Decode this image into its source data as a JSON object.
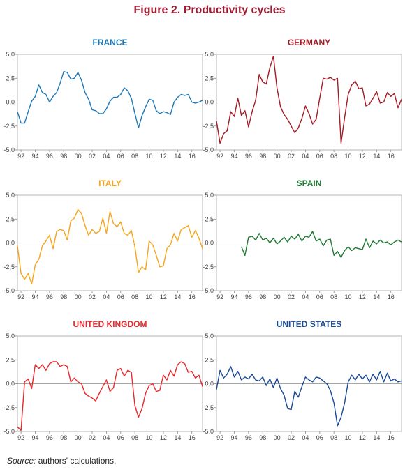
{
  "figure": {
    "title": "Figure 2. Productivity cycles",
    "source_label": "Source:",
    "source_text": " authors' calculations."
  },
  "chart_data": [
    {
      "type": "line",
      "title": "FRANCE",
      "color": "#1f77b4",
      "yticks": [
        "5,0",
        "2,5",
        "0,0",
        "-2,5",
        "-5,0"
      ],
      "ylim": [
        -5,
        5
      ],
      "xticks": [
        "92",
        "94",
        "96",
        "98",
        "00",
        "02",
        "04",
        "06",
        "08",
        "10",
        "12",
        "14",
        "16"
      ],
      "xlim": [
        1991.5,
        2017.5
      ],
      "grid": false,
      "x": [
        1991.5,
        1992,
        1992.5,
        1993,
        1993.5,
        1994,
        1994.5,
        1995,
        1995.5,
        1996,
        1996.5,
        1997,
        1997.5,
        1998,
        1998.5,
        1999,
        1999.5,
        2000,
        2000.5,
        2001,
        2001.5,
        2002,
        2002.5,
        2003,
        2003.5,
        2004,
        2004.5,
        2005,
        2005.5,
        2006,
        2006.5,
        2007,
        2007.5,
        2008,
        2008.5,
        2009,
        2009.5,
        2010,
        2010.5,
        2011,
        2011.5,
        2012,
        2012.5,
        2013,
        2013.5,
        2014,
        2014.5,
        2015,
        2015.5,
        2016,
        2016.5,
        2017,
        2017.5
      ],
      "y": [
        -1.0,
        -2.2,
        -2.2,
        -1.0,
        0.1,
        0.6,
        1.8,
        1.0,
        0.8,
        0.0,
        0.6,
        1.0,
        2.0,
        3.2,
        3.1,
        2.4,
        2.5,
        3.1,
        2.3,
        1.0,
        0.3,
        -0.8,
        -0.9,
        -1.2,
        -1.2,
        -0.7,
        0.1,
        0.5,
        0.5,
        0.8,
        1.5,
        1.2,
        0.4,
        -1.2,
        -2.7,
        -1.4,
        -0.5,
        0.3,
        0.2,
        -0.9,
        -1.2,
        -1.0,
        -1.1,
        -1.3,
        0.0,
        0.5,
        0.8,
        0.7,
        0.8,
        0.0,
        -0.1,
        0.0,
        0.2
      ]
    },
    {
      "type": "line",
      "title": "GERMANY",
      "color": "#a31b24",
      "yticks": [
        "5,0",
        "2,5",
        "0,0",
        "-2,5",
        "-5,0"
      ],
      "ylim": [
        -5,
        5
      ],
      "xticks": [
        "92",
        "94",
        "96",
        "98",
        "00",
        "02",
        "04",
        "06",
        "08",
        "10",
        "12",
        "14",
        "16"
      ],
      "xlim": [
        1991.5,
        2017.5
      ],
      "grid": false,
      "x": [
        1991.5,
        1992,
        1992.5,
        1993,
        1993.5,
        1994,
        1994.5,
        1995,
        1995.5,
        1996,
        1996.5,
        1997,
        1997.5,
        1998,
        1998.5,
        1999,
        1999.5,
        2000,
        2000.5,
        2001,
        2001.5,
        2002,
        2002.5,
        2003,
        2003.5,
        2004,
        2004.5,
        2005,
        2005.5,
        2006,
        2006.5,
        2007,
        2007.5,
        2008,
        2008.5,
        2009,
        2009.5,
        2010,
        2010.5,
        2011,
        2011.5,
        2012,
        2012.5,
        2013,
        2013.5,
        2014,
        2014.5,
        2015,
        2015.5,
        2016,
        2016.5,
        2017,
        2017.5
      ],
      "y": [
        -2.0,
        -4.3,
        -3.3,
        -3.0,
        -1.0,
        -1.5,
        0.4,
        -1.4,
        -0.9,
        -2.6,
        -1.0,
        0.2,
        2.9,
        2.1,
        1.9,
        3.6,
        4.8,
        1.5,
        -0.5,
        -1.3,
        -1.8,
        -2.5,
        -3.2,
        -2.7,
        -1.7,
        -0.4,
        -1.2,
        -2.3,
        -1.8,
        0.4,
        2.5,
        2.4,
        2.6,
        2.3,
        2.5,
        -4.3,
        -1.6,
        0.8,
        1.8,
        2.2,
        1.4,
        1.5,
        -0.4,
        -0.2,
        0.4,
        1.1,
        -0.1,
        0.0,
        1.0,
        0.6,
        0.9,
        -0.6,
        0.3
      ]
    },
    {
      "type": "line",
      "title": "ITALY",
      "color": "#f5a51c",
      "yticks": [
        "5,0",
        "2,5",
        "0,0",
        "-2,5",
        "-5,0"
      ],
      "ylim": [
        -5,
        5
      ],
      "xticks": [
        "92",
        "94",
        "96",
        "98",
        "00",
        "02",
        "04",
        "06",
        "08",
        "10",
        "12",
        "14",
        "16"
      ],
      "xlim": [
        1991.5,
        2017.5
      ],
      "grid": false,
      "x": [
        1991.5,
        1992,
        1992.5,
        1993,
        1993.5,
        1994,
        1994.5,
        1995,
        1995.5,
        1996,
        1996.5,
        1997,
        1997.5,
        1998,
        1998.5,
        1999,
        1999.5,
        2000,
        2000.5,
        2001,
        2001.5,
        2002,
        2002.5,
        2003,
        2003.5,
        2004,
        2004.5,
        2005,
        2005.5,
        2006,
        2006.5,
        2007,
        2007.5,
        2008,
        2008.5,
        2009,
        2009.5,
        2010,
        2010.5,
        2011,
        2011.5,
        2012,
        2012.5,
        2013,
        2013.5,
        2014,
        2014.5,
        2015,
        2015.5,
        2016,
        2016.5,
        2017,
        2017.5
      ],
      "y": [
        -0.3,
        -3.2,
        -3.8,
        -3.2,
        -4.3,
        -2.3,
        -1.7,
        -0.3,
        0.2,
        0.8,
        -0.6,
        1.2,
        1.4,
        1.3,
        0.3,
        2.3,
        2.6,
        3.5,
        3.1,
        1.8,
        0.8,
        1.4,
        1.0,
        1.2,
        2.6,
        1.0,
        3.3,
        2.0,
        1.7,
        2.2,
        1.0,
        0.8,
        1.3,
        -0.4,
        -3.1,
        -2.5,
        -2.8,
        0.2,
        -0.2,
        -1.3,
        -2.5,
        -2.4,
        -0.6,
        -0.2,
        1.0,
        0.2,
        1.4,
        1.6,
        1.8,
        0.6,
        1.3,
        0.5,
        -0.6
      ]
    },
    {
      "type": "line",
      "title": "SPAIN",
      "color": "#1e7a34",
      "yticks": [
        "5,0",
        "2,5",
        "0,0",
        "-2,5",
        "-5,0"
      ],
      "ylim": [
        -5,
        5
      ],
      "xticks": [
        "92",
        "94",
        "96",
        "98",
        "00",
        "02",
        "04",
        "06",
        "08",
        "10",
        "12",
        "14",
        "16"
      ],
      "xlim": [
        1991.5,
        2017.5
      ],
      "grid": false,
      "x": [
        1995,
        1995.5,
        1996,
        1996.5,
        1997,
        1997.5,
        1998,
        1998.5,
        1999,
        1999.5,
        2000,
        2000.5,
        2001,
        2001.5,
        2002,
        2002.5,
        2003,
        2003.5,
        2004,
        2004.5,
        2005,
        2005.5,
        2006,
        2006.5,
        2007,
        2007.5,
        2008,
        2008.5,
        2009,
        2009.5,
        2010,
        2010.5,
        2011,
        2011.5,
        2012,
        2012.5,
        2013,
        2013.5,
        2014,
        2014.5,
        2015,
        2015.5,
        2016,
        2016.5,
        2017,
        2017.5
      ],
      "y": [
        -0.4,
        -1.3,
        0.6,
        0.7,
        0.3,
        1.0,
        0.3,
        0.5,
        0.0,
        0.5,
        -0.1,
        0.2,
        0.6,
        0.1,
        0.7,
        0.4,
        0.9,
        0.2,
        0.7,
        0.6,
        1.2,
        0.2,
        0.4,
        -0.3,
        0.3,
        0.4,
        -1.3,
        -0.9,
        -1.5,
        -0.8,
        -0.4,
        -0.8,
        -0.5,
        -0.6,
        -0.7,
        0.4,
        -0.5,
        0.2,
        -0.1,
        0.3,
        0.0,
        0.1,
        -0.2,
        0.1,
        0.3,
        0.1
      ]
    },
    {
      "type": "line",
      "title": "UNITED KINGDOM",
      "color": "#e8282b",
      "yticks": [
        "5,0",
        "2,5",
        "0,0",
        "-2,5",
        "-5,0"
      ],
      "ylim": [
        -5,
        5
      ],
      "xticks": [
        "92",
        "94",
        "96",
        "98",
        "00",
        "02",
        "04",
        "06",
        "08",
        "10",
        "12",
        "14",
        "16"
      ],
      "xlim": [
        1991.5,
        2017.5
      ],
      "grid": false,
      "x": [
        1991.5,
        1992,
        1992.5,
        1993,
        1993.5,
        1994,
        1994.5,
        1995,
        1995.5,
        1996,
        1996.5,
        1997,
        1997.5,
        1998,
        1998.5,
        1999,
        1999.5,
        2000,
        2000.5,
        2001,
        2001.5,
        2002,
        2002.5,
        2003,
        2003.5,
        2004,
        2004.5,
        2005,
        2005.5,
        2006,
        2006.5,
        2007,
        2007.5,
        2008,
        2008.5,
        2009,
        2009.5,
        2010,
        2010.5,
        2011,
        2011.5,
        2012,
        2012.5,
        2013,
        2013.5,
        2014,
        2014.5,
        2015,
        2015.5,
        2016,
        2016.5,
        2017,
        2017.5
      ],
      "y": [
        -4.5,
        -4.9,
        0.2,
        0.5,
        -0.5,
        2.0,
        1.6,
        2.0,
        1.4,
        2.1,
        2.3,
        2.3,
        1.8,
        2.0,
        1.8,
        0.2,
        0.6,
        0.2,
        0.0,
        -1.0,
        -1.3,
        -1.5,
        -1.8,
        -1.0,
        -0.3,
        0.4,
        -0.8,
        -0.4,
        1.4,
        1.6,
        0.8,
        1.4,
        1.2,
        -2.3,
        -3.5,
        -2.6,
        -1.0,
        -0.2,
        0.0,
        -0.8,
        -0.7,
        0.9,
        0.4,
        1.4,
        0.8,
        2.0,
        2.3,
        2.1,
        1.2,
        1.3,
        0.6,
        0.9,
        -0.3
      ]
    },
    {
      "type": "line",
      "title": "UNITED STATES",
      "color": "#1a4a96",
      "yticks": [
        "5,0",
        "2,5",
        "0,0",
        "-2,5",
        "-5,0"
      ],
      "ylim": [
        -5,
        5
      ],
      "xticks": [
        "92",
        "94",
        "96",
        "98",
        "00",
        "02",
        "04",
        "06",
        "08",
        "10",
        "12",
        "14",
        "16"
      ],
      "xlim": [
        1991.5,
        2017.5
      ],
      "grid": false,
      "x": [
        1991.5,
        1992,
        1992.5,
        1993,
        1993.5,
        1994,
        1994.5,
        1995,
        1995.5,
        1996,
        1996.5,
        1997,
        1997.5,
        1998,
        1998.5,
        1999,
        1999.5,
        2000,
        2000.5,
        2001,
        2001.5,
        2002,
        2002.5,
        2003,
        2003.5,
        2004,
        2004.5,
        2005,
        2005.5,
        2006,
        2006.5,
        2007,
        2007.5,
        2008,
        2008.5,
        2009,
        2009.5,
        2010,
        2010.5,
        2011,
        2011.5,
        2012,
        2012.5,
        2013,
        2013.5,
        2014,
        2014.5,
        2015,
        2015.5,
        2016,
        2016.5,
        2017,
        2017.5
      ],
      "y": [
        -0.6,
        1.4,
        0.6,
        1.0,
        1.8,
        0.7,
        1.3,
        0.4,
        0.7,
        0.5,
        1.0,
        0.4,
        0.3,
        0.7,
        -0.2,
        0.5,
        -0.4,
        0.6,
        -0.5,
        -1.2,
        -2.6,
        -2.7,
        -0.8,
        -1.4,
        -0.3,
        0.7,
        0.4,
        0.2,
        0.7,
        0.6,
        0.3,
        0.0,
        -0.7,
        -2.0,
        -4.4,
        -3.5,
        -2.0,
        0.2,
        0.9,
        0.4,
        1.0,
        0.5,
        0.9,
        0.2,
        1.0,
        0.4,
        1.3,
        0.2,
        1.1,
        0.3,
        0.5,
        0.2,
        0.3
      ]
    }
  ]
}
